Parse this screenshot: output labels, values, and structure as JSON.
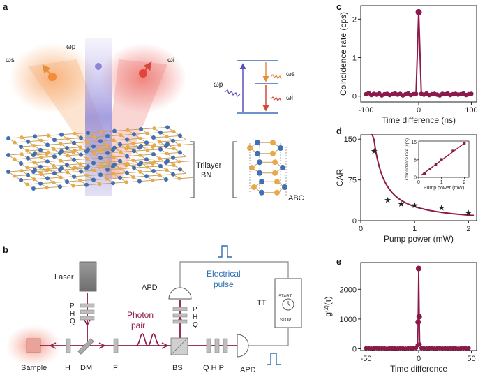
{
  "panels": {
    "a": {
      "letter": "a",
      "omega_s": "ωs",
      "omega_p": "ωp",
      "omega_i": "ωi",
      "level_omega_p": "ωp",
      "level_omega_s": "ωs",
      "level_omega_i": "ωi",
      "trilayer": "Trilayer",
      "bn": "BN",
      "abc": "ABC"
    },
    "b": {
      "letter": "b",
      "laser": "Laser",
      "p1": "P",
      "h1": "H",
      "q1": "Q",
      "apd_top": "APD",
      "electrical": "Electrical",
      "pulse": "pulse",
      "p2": "P",
      "h2": "H",
      "q2": "Q",
      "tt": "TT",
      "start": "START",
      "stop": "STOP",
      "photon": "Photon",
      "pair": "pair",
      "sample": "Sample",
      "h_bot": "H",
      "dm": "DM",
      "f": "F",
      "bs": "BS",
      "qhp": "Q H P",
      "apd_bot": "APD"
    },
    "c": {
      "letter": "c"
    },
    "d": {
      "letter": "d"
    },
    "e": {
      "letter": "e"
    }
  },
  "chart_data": [
    {
      "id": "c",
      "type": "line",
      "xlabel": "Time difference (ns)",
      "ylabel": "Coincidence rate (cps)",
      "xlim": [
        -110,
        110
      ],
      "ylim": [
        -0.15,
        2.35
      ],
      "xticks": [
        "-100",
        "0",
        "100"
      ],
      "yticks": [
        "0",
        "1",
        "2"
      ],
      "color": "#8b1a4a",
      "series": [
        {
          "x": [
            -100,
            -95,
            -90,
            -85,
            -80,
            -75,
            -70,
            -65,
            -60,
            -55,
            -50,
            -45,
            -40,
            -35,
            -30,
            -25,
            -20,
            -15,
            -10,
            -5,
            0,
            5,
            10,
            15,
            20,
            25,
            30,
            35,
            40,
            45,
            50,
            55,
            60,
            65,
            70,
            75,
            80,
            85,
            90,
            95,
            100
          ],
          "values": [
            0.05,
            0.08,
            0.03,
            0.06,
            0.04,
            0.07,
            0.02,
            0.05,
            0.06,
            0.03,
            0.05,
            0.07,
            0.04,
            0.06,
            0.02,
            0.05,
            0.07,
            0.03,
            0.05,
            0.06,
            2.18,
            0.06,
            0.04,
            0.07,
            0.03,
            0.05,
            0.06,
            0.04,
            0.02,
            0.06,
            0.05,
            0.07,
            0.03,
            0.05,
            0.06,
            0.04,
            0.05,
            0.07,
            0.03,
            0.05,
            0.06
          ]
        }
      ]
    },
    {
      "id": "d",
      "type": "scatter",
      "xlabel": "Pump power (mW)",
      "ylabel": "CAR",
      "xlim": [
        0,
        2.15
      ],
      "ylim": [
        0,
        158
      ],
      "xticks": [
        "0",
        "1",
        "2"
      ],
      "yticks": [
        "0",
        "75",
        "150"
      ],
      "color": "#8b1a4a",
      "series": [
        {
          "x": [
            0.25,
            0.5,
            0.75,
            1.0,
            1.5,
            2.0
          ],
          "values": [
            128,
            38,
            31,
            28,
            24,
            14
          ]
        }
      ],
      "fit": {
        "a": 28,
        "b": 0.8
      },
      "inset": {
        "type": "scatter",
        "xlabel": "Pump power (mW)",
        "ylabel": "Coincidence rate (cps)",
        "xlim": [
          0,
          2.2
        ],
        "ylim": [
          0,
          16.5
        ],
        "xticks": [
          "0",
          "1",
          "2"
        ],
        "yticks": [
          "0",
          "8",
          "16"
        ],
        "x": [
          0.25,
          0.5,
          0.75,
          1.0,
          1.5,
          2.0
        ],
        "values": [
          1.8,
          3.8,
          5.9,
          8.2,
          12.0,
          15.5
        ]
      }
    },
    {
      "id": "e",
      "type": "line",
      "xlabel": "Time difference",
      "ylabel": "g(2)(τ)",
      "xlim": [
        -55,
        55
      ],
      "ylim": [
        -60,
        2900
      ],
      "xticks": [
        "-50",
        "0",
        "50"
      ],
      "yticks": [
        "0",
        "1000",
        "2000"
      ],
      "color": "#8b1a4a",
      "series": [
        {
          "x": [
            -50,
            -47.5,
            -45,
            -42.5,
            -40,
            -37.5,
            -35,
            -32.5,
            -30,
            -27.5,
            -25,
            -22.5,
            -20,
            -17.5,
            -15,
            -12.5,
            -10,
            -7.5,
            -5,
            -2.5,
            -1,
            -0.5,
            0,
            0.5,
            1,
            2.5,
            5,
            7.5,
            10,
            12.5,
            15,
            17.5,
            20,
            22.5,
            25,
            27.5,
            30,
            32.5,
            35,
            37.5,
            40,
            42.5,
            45,
            47.5
          ],
          "values": [
            15,
            22,
            10,
            18,
            25,
            12,
            20,
            16,
            9,
            21,
            14,
            19,
            11,
            23,
            17,
            8,
            20,
            13,
            18,
            24,
            120,
            900,
            2700,
            1080,
            150,
            22,
            16,
            12,
            19,
            24,
            10,
            17,
            21,
            13,
            18,
            11,
            22,
            15,
            20,
            9,
            17,
            23,
            14,
            20
          ]
        }
      ]
    }
  ]
}
